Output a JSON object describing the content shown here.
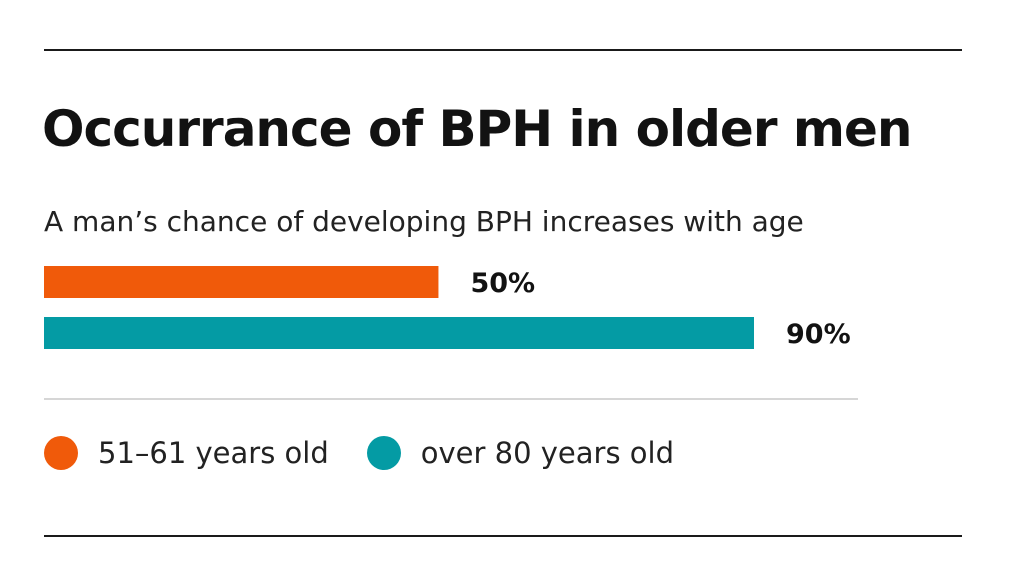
{
  "chart_data": {
    "type": "bar",
    "orientation": "horizontal",
    "title": "Occurrance of BPH in older men",
    "subtitle": "A man’s chance of developing BPH increases with age",
    "xlim": [
      0,
      100
    ],
    "grid": false,
    "legend_position": "bottom",
    "series": [
      {
        "name": "51–61 years old",
        "value": 50,
        "label": "50%",
        "color": "#f05a0a"
      },
      {
        "name": "over 80 years old",
        "value": 90,
        "label": "90%",
        "color": "#049ba4"
      }
    ]
  }
}
